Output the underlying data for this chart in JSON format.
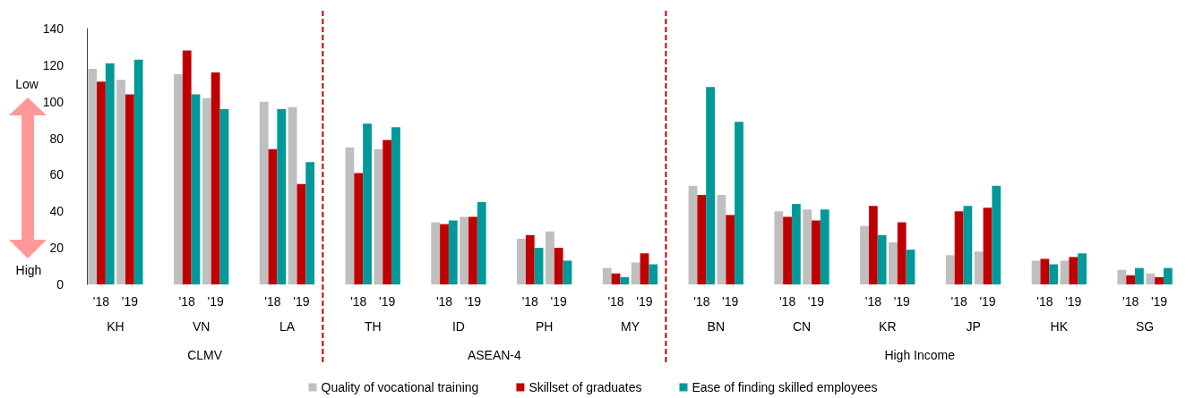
{
  "chart_data": {
    "type": "bar",
    "categories": [
      "'18",
      "'19",
      null,
      "'18",
      "'19",
      null,
      "'18",
      "'19",
      null,
      "'18",
      "'19",
      null,
      "'18",
      "'19",
      null,
      "'18",
      "'19",
      null,
      "'18",
      "'19",
      null,
      "'18",
      "'19",
      null,
      "'18",
      "'19",
      null,
      "'18",
      "'19",
      null,
      "'18",
      "'19",
      null,
      "'18",
      "'19",
      null,
      "'18",
      "'19"
    ],
    "series": [
      {
        "name": "Quality of vocational training",
        "color": "#bfbfbf",
        "values": [
          118,
          112,
          null,
          115,
          102,
          null,
          100,
          97,
          null,
          75,
          74,
          null,
          34,
          37,
          null,
          25,
          29,
          null,
          9,
          12,
          null,
          54,
          49,
          null,
          40,
          41,
          null,
          32,
          23,
          null,
          16,
          18,
          null,
          13,
          13,
          null,
          8,
          6
        ]
      },
      {
        "name": "Skillset of graduates",
        "color": "#c00000",
        "values": [
          111,
          104,
          null,
          128,
          116,
          null,
          74,
          55,
          null,
          61,
          79,
          null,
          33,
          37,
          null,
          27,
          20,
          null,
          6,
          17,
          null,
          49,
          38,
          null,
          37,
          35,
          null,
          43,
          34,
          null,
          40,
          42,
          null,
          14,
          15,
          null,
          5,
          4
        ]
      },
      {
        "name": "Ease of finding skilled employees",
        "color": "#009999",
        "values": [
          121,
          123,
          null,
          104,
          96,
          null,
          96,
          67,
          null,
          88,
          86,
          null,
          35,
          45,
          null,
          20,
          13,
          null,
          4,
          11,
          null,
          108,
          89,
          null,
          44,
          41,
          null,
          27,
          19,
          null,
          43,
          54,
          null,
          11,
          17,
          null,
          9,
          9
        ]
      }
    ],
    "ylim": [
      0,
      140
    ],
    "yticks": [
      0,
      20,
      40,
      60,
      80,
      100,
      120,
      140
    ],
    "grid": false,
    "legend": "bottom",
    "annotations": [
      "KH",
      "VN",
      "LA",
      "TH",
      "ID",
      "PH",
      "MY",
      "BN",
      "CN",
      "KR",
      "JP",
      "HK",
      "SG",
      "CLMV",
      "ASEAN-4",
      "High Income",
      "Low",
      "High"
    ]
  }
}
